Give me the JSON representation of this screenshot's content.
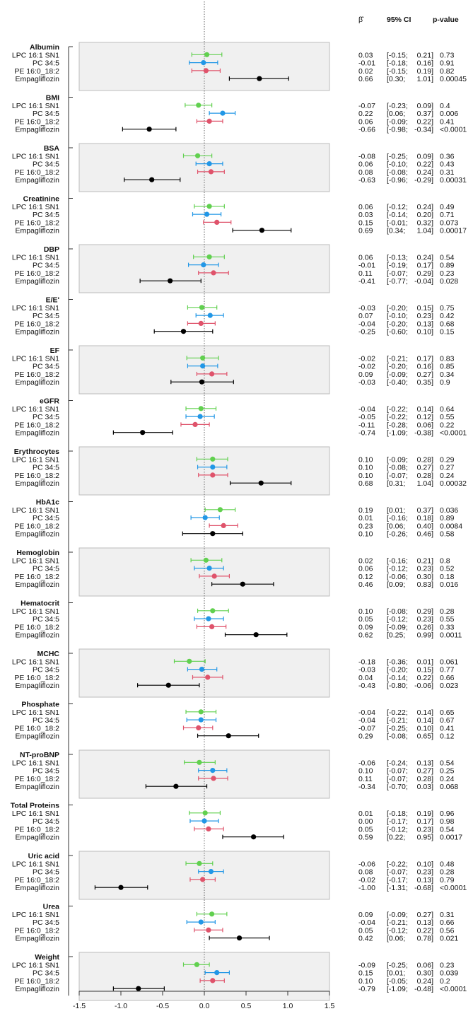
{
  "chart_data": {
    "type": "forest",
    "title": "",
    "xlabel": "",
    "xlim": [
      -1.5,
      1.5
    ],
    "xticks": [
      "-1.5",
      "-1.0",
      "-0.5",
      "0.0",
      "0.5",
      "1.0",
      "1.5"
    ],
    "reference_line": 0,
    "columns": {
      "beta": "β̂",
      "ci": "95% CI",
      "p": "p-value"
    },
    "row_labels": [
      "LPC 16:1 SN1",
      "PC 34:5",
      "PE 16:0_18:2",
      "Empagliflozin"
    ],
    "series_colors": [
      "#61D04F",
      "#2297E6",
      "#DF536B",
      "#000000"
    ],
    "band_color": "#f0f0f0",
    "groups": [
      {
        "name": "Albumin",
        "rows": [
          [
            "0.03",
            "-0.15",
            "0.21",
            "0.73"
          ],
          [
            "-0.01",
            "-0.18",
            "0.16",
            "0.91"
          ],
          [
            "0.02",
            "-0.15",
            "0.19",
            "0.82"
          ],
          [
            "0.66",
            "0.30",
            "1.01",
            "0.00045"
          ]
        ]
      },
      {
        "name": "BMI",
        "rows": [
          [
            "-0.07",
            "-0.23",
            "0.09",
            "0.4"
          ],
          [
            "0.22",
            "0.06",
            "0.37",
            "0.006"
          ],
          [
            "0.06",
            "-0.09",
            "0.22",
            "0.41"
          ],
          [
            "-0.66",
            "-0.98",
            "-0.34",
            "<0.0001"
          ]
        ]
      },
      {
        "name": "BSA",
        "rows": [
          [
            "-0.08",
            "-0.25",
            "0.09",
            "0.36"
          ],
          [
            "0.06",
            "-0.10",
            "0.22",
            "0.43"
          ],
          [
            "0.08",
            "-0.08",
            "0.24",
            "0.31"
          ],
          [
            "-0.63",
            "-0.96",
            "-0.29",
            "0.00031"
          ]
        ]
      },
      {
        "name": "Creatinine",
        "rows": [
          [
            "0.06",
            "-0.12",
            "0.24",
            "0.49"
          ],
          [
            "0.03",
            "-0.14",
            "0.20",
            "0.71"
          ],
          [
            "0.15",
            "-0.01",
            "0.32",
            "0.073"
          ],
          [
            "0.69",
            "0.34",
            "1.04",
            "0.00017"
          ]
        ]
      },
      {
        "name": "DBP",
        "rows": [
          [
            "0.06",
            "-0.13",
            "0.24",
            "0.54"
          ],
          [
            "-0.01",
            "-0.19",
            "0.17",
            "0.89"
          ],
          [
            "0.11",
            "-0.07",
            "0.29",
            "0.23"
          ],
          [
            "-0.41",
            "-0.77",
            "-0.04",
            "0.028"
          ]
        ]
      },
      {
        "name": "E/E'",
        "rows": [
          [
            "-0.03",
            "-0.20",
            "0.15",
            "0.75"
          ],
          [
            "0.07",
            "-0.10",
            "0.23",
            "0.42"
          ],
          [
            "-0.04",
            "-0.20",
            "0.13",
            "0.68"
          ],
          [
            "-0.25",
            "-0.60",
            "0.10",
            "0.15"
          ]
        ]
      },
      {
        "name": "EF",
        "rows": [
          [
            "-0.02",
            "-0.21",
            "0.17",
            "0.83"
          ],
          [
            "-0.02",
            "-0.20",
            "0.16",
            "0.85"
          ],
          [
            "0.09",
            "-0.09",
            "0.27",
            "0.34"
          ],
          [
            "-0.03",
            "-0.40",
            "0.35",
            "0.9"
          ]
        ]
      },
      {
        "name": "eGFR",
        "rows": [
          [
            "-0.04",
            "-0.22",
            "0.14",
            "0.64"
          ],
          [
            "-0.05",
            "-0.22",
            "0.12",
            "0.55"
          ],
          [
            "-0.11",
            "-0.28",
            "0.06",
            "0.22"
          ],
          [
            "-0.74",
            "-1.09",
            "-0.38",
            "<0.0001"
          ]
        ]
      },
      {
        "name": "Erythrocytes",
        "rows": [
          [
            "0.10",
            "-0.09",
            "0.28",
            "0.29"
          ],
          [
            "0.10",
            "-0.08",
            "0.27",
            "0.27"
          ],
          [
            "0.10",
            "-0.07",
            "0.28",
            "0.24"
          ],
          [
            "0.68",
            "0.31",
            "1.04",
            "0.00032"
          ]
        ]
      },
      {
        "name": "HbA1c",
        "rows": [
          [
            "0.19",
            "0.01",
            "0.37",
            "0.036"
          ],
          [
            "0.01",
            "-0.16",
            "0.18",
            "0.89"
          ],
          [
            "0.23",
            "0.06",
            "0.40",
            "0.0084"
          ],
          [
            "0.10",
            "-0.26",
            "0.46",
            "0.58"
          ]
        ]
      },
      {
        "name": "Hemoglobin",
        "rows": [
          [
            "0.02",
            "-0.16",
            "0.21",
            "0.8"
          ],
          [
            "0.06",
            "-0.12",
            "0.23",
            "0.52"
          ],
          [
            "0.12",
            "-0.06",
            "0.30",
            "0.18"
          ],
          [
            "0.46",
            "0.09",
            "0.83",
            "0.016"
          ]
        ]
      },
      {
        "name": "Hematocrit",
        "rows": [
          [
            "0.10",
            "-0.08",
            "0.29",
            "0.28"
          ],
          [
            "0.05",
            "-0.12",
            "0.23",
            "0.55"
          ],
          [
            "0.09",
            "-0.09",
            "0.26",
            "0.33"
          ],
          [
            "0.62",
            "0.25",
            "0.99",
            "0.0011"
          ]
        ]
      },
      {
        "name": "MCHC",
        "rows": [
          [
            "-0.18",
            "-0.36",
            "0.01",
            "0.061"
          ],
          [
            "-0.03",
            "-0.20",
            "0.15",
            "0.77"
          ],
          [
            "0.04",
            "-0.14",
            "0.22",
            "0.66"
          ],
          [
            "-0.43",
            "-0.80",
            "-0.06",
            "0.023"
          ]
        ]
      },
      {
        "name": "Phosphate",
        "rows": [
          [
            "-0.04",
            "-0.22",
            "0.14",
            "0.65"
          ],
          [
            "-0.04",
            "-0.21",
            "0.14",
            "0.67"
          ],
          [
            "-0.07",
            "-0.25",
            "0.10",
            "0.41"
          ],
          [
            "0.29",
            "-0.08",
            "0.65",
            "0.12"
          ]
        ]
      },
      {
        "name": "NT-proBNP",
        "rows": [
          [
            "-0.06",
            "-0.24",
            "0.13",
            "0.54"
          ],
          [
            "0.10",
            "-0.07",
            "0.27",
            "0.25"
          ],
          [
            "0.11",
            "-0.07",
            "0.28",
            "0.24"
          ],
          [
            "-0.34",
            "-0.70",
            "0.03",
            "0.068"
          ]
        ]
      },
      {
        "name": "Total Proteins",
        "rows": [
          [
            "0.01",
            "-0.18",
            "0.19",
            "0.96"
          ],
          [
            "0.00",
            "-0.17",
            "0.17",
            "0.98"
          ],
          [
            "0.05",
            "-0.12",
            "0.23",
            "0.54"
          ],
          [
            "0.59",
            "0.22",
            "0.95",
            "0.0017"
          ]
        ]
      },
      {
        "name": "Uric acid",
        "rows": [
          [
            "-0.06",
            "-0.22",
            "0.10",
            "0.48"
          ],
          [
            "0.08",
            "-0.07",
            "0.23",
            "0.28"
          ],
          [
            "-0.02",
            "-0.17",
            "0.13",
            "0.79"
          ],
          [
            "-1.00",
            "-1.31",
            "-0.68",
            "<0.0001"
          ]
        ]
      },
      {
        "name": "Urea",
        "rows": [
          [
            "0.09",
            "-0.09",
            "0.27",
            "0.31"
          ],
          [
            "-0.04",
            "-0.21",
            "0.13",
            "0.66"
          ],
          [
            "0.05",
            "-0.12",
            "0.22",
            "0.56"
          ],
          [
            "0.42",
            "0.06",
            "0.78",
            "0.021"
          ]
        ]
      },
      {
        "name": "Weight",
        "rows": [
          [
            "-0.09",
            "-0.25",
            "0.06",
            "0.23"
          ],
          [
            "0.15",
            "0.01",
            "0.30",
            "0.039"
          ],
          [
            "0.10",
            "-0.05",
            "0.24",
            "0.2"
          ],
          [
            "-0.79",
            "-1.09",
            "-0.48",
            "<0.0001"
          ]
        ]
      }
    ]
  }
}
